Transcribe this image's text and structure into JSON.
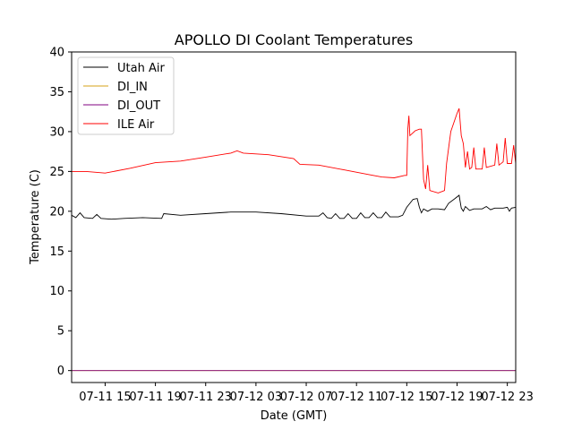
{
  "chart_data": {
    "type": "line",
    "title": "APOLLO DI Coolant Temperatures",
    "xlabel": "Date (GMT)",
    "ylabel": "Temperature (C)",
    "xlim": [
      "07-11 12:20",
      "07-12 23:40"
    ],
    "ylim": [
      -1.5,
      40
    ],
    "x_ticks": [
      {
        "label": "07-11 15",
        "value": "07-11 15:00"
      },
      {
        "label": "07-11 19",
        "value": "07-11 19:00"
      },
      {
        "label": "07-11 23",
        "value": "07-11 23:00"
      },
      {
        "label": "07-12 03",
        "value": "07-12 03:00"
      },
      {
        "label": "07-12 07",
        "value": "07-12 07:00"
      },
      {
        "label": "07-12 11",
        "value": "07-12 11:00"
      },
      {
        "label": "07-12 15",
        "value": "07-12 15:00"
      },
      {
        "label": "07-12 19",
        "value": "07-12 19:00"
      },
      {
        "label": "07-12 23",
        "value": "07-12 23:00"
      }
    ],
    "y_ticks": [
      0,
      5,
      10,
      15,
      20,
      25,
      30,
      35,
      40
    ],
    "grid": false,
    "legend_position": "top-left",
    "series": [
      {
        "name": "Utah Air",
        "color": "#000000",
        "points": [
          [
            "07-11 12:20",
            19.5
          ],
          [
            "07-11 12:40",
            19.2
          ],
          [
            "07-11 13:00",
            19.8
          ],
          [
            "07-11 13:20",
            19.2
          ],
          [
            "07-11 14:00",
            19.1
          ],
          [
            "07-11 14:20",
            19.6
          ],
          [
            "07-11 14:40",
            19.1
          ],
          [
            "07-11 15:30",
            19.0
          ],
          [
            "07-11 16:30",
            19.1
          ],
          [
            "07-11 18:00",
            19.2
          ],
          [
            "07-11 19:30",
            19.1
          ],
          [
            "07-11 19:40",
            19.7
          ],
          [
            "07-11 21:00",
            19.5
          ],
          [
            "07-11 23:00",
            19.7
          ],
          [
            "07-12 01:00",
            19.9
          ],
          [
            "07-12 03:00",
            19.9
          ],
          [
            "07-12 05:00",
            19.7
          ],
          [
            "07-12 07:00",
            19.4
          ],
          [
            "07-12 08:00",
            19.4
          ],
          [
            "07-12 08:20",
            19.8
          ],
          [
            "07-12 08:40",
            19.2
          ],
          [
            "07-12 09:00",
            19.1
          ],
          [
            "07-12 09:20",
            19.7
          ],
          [
            "07-12 09:40",
            19.1
          ],
          [
            "07-12 10:00",
            19.1
          ],
          [
            "07-12 10:20",
            19.7
          ],
          [
            "07-12 10:40",
            19.1
          ],
          [
            "07-12 11:00",
            19.1
          ],
          [
            "07-12 11:20",
            19.8
          ],
          [
            "07-12 11:40",
            19.2
          ],
          [
            "07-12 12:00",
            19.2
          ],
          [
            "07-12 12:20",
            19.8
          ],
          [
            "07-12 12:40",
            19.2
          ],
          [
            "07-12 13:00",
            19.2
          ],
          [
            "07-12 13:20",
            19.9
          ],
          [
            "07-12 13:40",
            19.3
          ],
          [
            "07-12 14:20",
            19.3
          ],
          [
            "07-12 14:40",
            19.5
          ],
          [
            "07-12 15:00",
            20.5
          ],
          [
            "07-12 15:30",
            21.5
          ],
          [
            "07-12 15:50",
            21.6
          ],
          [
            "07-12 16:00",
            20.5
          ],
          [
            "07-12 16:10",
            19.8
          ],
          [
            "07-12 16:20",
            20.3
          ],
          [
            "07-12 16:40",
            20.0
          ],
          [
            "07-12 17:00",
            20.3
          ],
          [
            "07-12 17:30",
            20.3
          ],
          [
            "07-12 18:00",
            20.2
          ],
          [
            "07-12 18:20",
            21.0
          ],
          [
            "07-12 18:50",
            21.6
          ],
          [
            "07-12 19:10",
            22.0
          ],
          [
            "07-12 19:20",
            20.4
          ],
          [
            "07-12 19:30",
            20.0
          ],
          [
            "07-12 19:40",
            20.6
          ],
          [
            "07-12 20:00",
            20.1
          ],
          [
            "07-12 20:20",
            20.3
          ],
          [
            "07-12 21:00",
            20.3
          ],
          [
            "07-12 21:20",
            20.6
          ],
          [
            "07-12 21:40",
            20.2
          ],
          [
            "07-12 22:00",
            20.4
          ],
          [
            "07-12 22:40",
            20.4
          ],
          [
            "07-12 23:00",
            20.5
          ],
          [
            "07-12 23:10",
            20.0
          ],
          [
            "07-12 23:20",
            20.4
          ],
          [
            "07-12 23:40",
            20.5
          ]
        ]
      },
      {
        "name": "DI_IN",
        "color": "#d4a017",
        "points": [
          [
            "07-11 12:20",
            0.0
          ],
          [
            "07-12 23:40",
            0.0
          ]
        ]
      },
      {
        "name": "DI_OUT",
        "color": "#800080",
        "points": [
          [
            "07-11 12:20",
            0.0
          ],
          [
            "07-12 23:40",
            0.0
          ]
        ]
      },
      {
        "name": "ILE Air",
        "color": "#ff0000",
        "points": [
          [
            "07-11 12:20",
            25.0
          ],
          [
            "07-11 13:30",
            25.0
          ],
          [
            "07-11 15:00",
            24.8
          ],
          [
            "07-11 17:00",
            25.4
          ],
          [
            "07-11 19:00",
            26.1
          ],
          [
            "07-11 21:00",
            26.3
          ],
          [
            "07-11 23:00",
            26.8
          ],
          [
            "07-12 01:00",
            27.3
          ],
          [
            "07-12 01:30",
            27.6
          ],
          [
            "07-12 02:00",
            27.3
          ],
          [
            "07-12 04:00",
            27.1
          ],
          [
            "07-12 06:00",
            26.6
          ],
          [
            "07-12 06:30",
            25.9
          ],
          [
            "07-12 08:00",
            25.8
          ],
          [
            "07-12 10:00",
            25.2
          ],
          [
            "07-12 12:00",
            24.6
          ],
          [
            "07-12 13:00",
            24.3
          ],
          [
            "07-12 14:00",
            24.2
          ],
          [
            "07-12 14:50",
            24.5
          ],
          [
            "07-12 15:00",
            24.5
          ],
          [
            "07-12 15:05",
            30.3
          ],
          [
            "07-12 15:10",
            32.0
          ],
          [
            "07-12 15:15",
            29.5
          ],
          [
            "07-12 15:40",
            30.1
          ],
          [
            "07-12 16:00",
            30.3
          ],
          [
            "07-12 16:10",
            30.3
          ],
          [
            "07-12 16:20",
            24.0
          ],
          [
            "07-12 16:30",
            22.8
          ],
          [
            "07-12 16:40",
            25.8
          ],
          [
            "07-12 16:50",
            22.6
          ],
          [
            "07-12 17:30",
            22.3
          ],
          [
            "07-12 18:00",
            22.6
          ],
          [
            "07-12 18:10",
            26.0
          ],
          [
            "07-12 18:30",
            30.0
          ],
          [
            "07-12 19:00",
            32.3
          ],
          [
            "07-12 19:10",
            32.9
          ],
          [
            "07-12 19:20",
            29.5
          ],
          [
            "07-12 19:30",
            28.5
          ],
          [
            "07-12 19:40",
            25.5
          ],
          [
            "07-12 19:50",
            27.5
          ],
          [
            "07-12 20:00",
            25.3
          ],
          [
            "07-12 20:10",
            25.5
          ],
          [
            "07-12 20:20",
            28.0
          ],
          [
            "07-12 20:30",
            25.3
          ],
          [
            "07-12 21:00",
            25.3
          ],
          [
            "07-12 21:10",
            28.0
          ],
          [
            "07-12 21:20",
            25.5
          ],
          [
            "07-12 22:00",
            25.8
          ],
          [
            "07-12 22:10",
            28.5
          ],
          [
            "07-12 22:20",
            25.8
          ],
          [
            "07-12 22:40",
            26.2
          ],
          [
            "07-12 22:50",
            29.2
          ],
          [
            "07-12 23:00",
            26.0
          ],
          [
            "07-12 23:20",
            26.0
          ],
          [
            "07-12 23:30",
            28.3
          ],
          [
            "07-12 23:40",
            26.0
          ]
        ]
      }
    ]
  }
}
